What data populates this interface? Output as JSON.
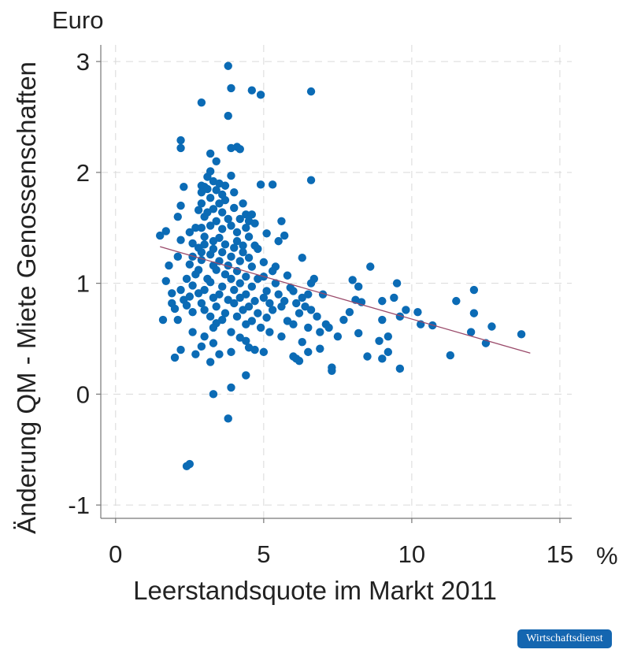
{
  "logo_text": "Wirtschaftsdienst",
  "chart_data": {
    "type": "scatter",
    "title": "",
    "xlabel": "Leerstandsquote im Markt 2011",
    "ylabel": "Änderung QM - Miete Genossenschaften",
    "x_unit": "%",
    "y_unit": "Euro",
    "xlim": [
      -0.5,
      15.4
    ],
    "ylim": [
      -1.12,
      3.15
    ],
    "x_ticks": [
      0,
      5,
      10,
      15
    ],
    "y_ticks": [
      -1,
      0,
      1,
      2,
      3
    ],
    "grid": true,
    "colors": {
      "points": "#0b6bb5",
      "fit_line": "#9a4a6a"
    },
    "fit_line": {
      "x": [
        1.5,
        14.0
      ],
      "y": [
        1.33,
        0.37
      ]
    },
    "points": [
      [
        3.8,
        2.96
      ],
      [
        3.9,
        2.76
      ],
      [
        4.6,
        2.74
      ],
      [
        4.9,
        2.7
      ],
      [
        6.6,
        2.73
      ],
      [
        2.9,
        2.63
      ],
      [
        3.8,
        2.51
      ],
      [
        4.1,
        2.23
      ],
      [
        2.2,
        2.29
      ],
      [
        4.2,
        2.21
      ],
      [
        2.2,
        2.22
      ],
      [
        3.9,
        2.22
      ],
      [
        3.2,
        2.17
      ],
      [
        3.4,
        2.1
      ],
      [
        3.1,
        1.96
      ],
      [
        3.9,
        1.97
      ],
      [
        3.2,
        2.01
      ],
      [
        6.6,
        1.93
      ],
      [
        2.9,
        1.88
      ],
      [
        3.3,
        1.92
      ],
      [
        3.5,
        1.9
      ],
      [
        2.3,
        1.87
      ],
      [
        3.0,
        1.87
      ],
      [
        3.7,
        1.88
      ],
      [
        4.9,
        1.89
      ],
      [
        5.3,
        1.89
      ],
      [
        3.1,
        1.85
      ],
      [
        3.4,
        1.84
      ],
      [
        2.9,
        1.82
      ],
      [
        3.6,
        1.8
      ],
      [
        4.0,
        1.82
      ],
      [
        3.2,
        1.77
      ],
      [
        3.7,
        1.75
      ],
      [
        2.9,
        1.72
      ],
      [
        3.5,
        1.72
      ],
      [
        4.3,
        1.72
      ],
      [
        2.2,
        1.7
      ],
      [
        3.3,
        1.67
      ],
      [
        4.0,
        1.68
      ],
      [
        2.8,
        1.66
      ],
      [
        3.1,
        1.64
      ],
      [
        3.6,
        1.64
      ],
      [
        4.4,
        1.62
      ],
      [
        4.6,
        1.62
      ],
      [
        2.1,
        1.6
      ],
      [
        3.0,
        1.6
      ],
      [
        3.8,
        1.58
      ],
      [
        4.2,
        1.58
      ],
      [
        3.4,
        1.56
      ],
      [
        4.5,
        1.56
      ],
      [
        5.6,
        1.56
      ],
      [
        4.7,
        1.54
      ],
      [
        3.2,
        1.52
      ],
      [
        3.9,
        1.52
      ],
      [
        2.7,
        1.5
      ],
      [
        2.9,
        1.5
      ],
      [
        3.6,
        1.49
      ],
      [
        4.4,
        1.5
      ],
      [
        1.7,
        1.47
      ],
      [
        2.5,
        1.46
      ],
      [
        4.1,
        1.46
      ],
      [
        5.1,
        1.45
      ],
      [
        1.5,
        1.43
      ],
      [
        3.0,
        1.42
      ],
      [
        3.5,
        1.41
      ],
      [
        4.5,
        1.42
      ],
      [
        5.7,
        1.43
      ],
      [
        2.2,
        1.39
      ],
      [
        3.3,
        1.38
      ],
      [
        4.1,
        1.38
      ],
      [
        5.5,
        1.38
      ],
      [
        2.6,
        1.36
      ],
      [
        3.0,
        1.35
      ],
      [
        3.7,
        1.35
      ],
      [
        4.3,
        1.34
      ],
      [
        4.7,
        1.34
      ],
      [
        2.8,
        1.32
      ],
      [
        3.3,
        1.31
      ],
      [
        4.0,
        1.32
      ],
      [
        4.8,
        1.31
      ],
      [
        2.9,
        1.28
      ],
      [
        3.6,
        1.28
      ],
      [
        4.3,
        1.28
      ],
      [
        3.2,
        1.26
      ],
      [
        2.1,
        1.24
      ],
      [
        2.6,
        1.24
      ],
      [
        3.9,
        1.24
      ],
      [
        4.5,
        1.23
      ],
      [
        6.3,
        1.23
      ],
      [
        2.9,
        1.21
      ],
      [
        3.5,
        1.2
      ],
      [
        4.2,
        1.2
      ],
      [
        5.0,
        1.19
      ],
      [
        1.8,
        1.16
      ],
      [
        2.5,
        1.17
      ],
      [
        3.3,
        1.16
      ],
      [
        3.8,
        1.16
      ],
      [
        4.6,
        1.15
      ],
      [
        5.4,
        1.15
      ],
      [
        8.6,
        1.15
      ],
      [
        2.8,
        1.12
      ],
      [
        3.4,
        1.12
      ],
      [
        4.1,
        1.11
      ],
      [
        5.3,
        1.11
      ],
      [
        2.7,
        1.08
      ],
      [
        3.7,
        1.08
      ],
      [
        4.4,
        1.06
      ],
      [
        5.0,
        1.06
      ],
      [
        5.8,
        1.07
      ],
      [
        2.4,
        1.04
      ],
      [
        3.1,
        1.04
      ],
      [
        3.9,
        1.04
      ],
      [
        4.8,
        1.04
      ],
      [
        6.7,
        1.04
      ],
      [
        8.0,
        1.03
      ],
      [
        1.7,
        1.02
      ],
      [
        3.2,
        1.01
      ],
      [
        4.2,
        1.0
      ],
      [
        5.4,
        1.0
      ],
      [
        6.6,
        1.0
      ],
      [
        9.5,
        1.0
      ],
      [
        2.6,
        0.98
      ],
      [
        3.6,
        0.97
      ],
      [
        4.6,
        0.97
      ],
      [
        5.9,
        0.96
      ],
      [
        8.2,
        0.97
      ],
      [
        2.2,
        0.94
      ],
      [
        3.0,
        0.94
      ],
      [
        4.0,
        0.94
      ],
      [
        5.1,
        0.93
      ],
      [
        6.0,
        0.93
      ],
      [
        12.1,
        0.94
      ],
      [
        1.9,
        0.91
      ],
      [
        2.8,
        0.91
      ],
      [
        3.5,
        0.9
      ],
      [
        4.4,
        0.9
      ],
      [
        5.5,
        0.9
      ],
      [
        6.5,
        0.9
      ],
      [
        7.0,
        0.9
      ],
      [
        2.5,
        0.88
      ],
      [
        3.3,
        0.87
      ],
      [
        4.2,
        0.87
      ],
      [
        5.0,
        0.87
      ],
      [
        6.3,
        0.87
      ],
      [
        9.4,
        0.87
      ],
      [
        2.3,
        0.85
      ],
      [
        3.8,
        0.85
      ],
      [
        4.7,
        0.84
      ],
      [
        5.7,
        0.84
      ],
      [
        8.1,
        0.85
      ],
      [
        9.0,
        0.84
      ],
      [
        11.5,
        0.84
      ],
      [
        1.9,
        0.82
      ],
      [
        2.9,
        0.82
      ],
      [
        4.0,
        0.82
      ],
      [
        5.2,
        0.82
      ],
      [
        6.1,
        0.82
      ],
      [
        8.3,
        0.83
      ],
      [
        2.4,
        0.8
      ],
      [
        3.4,
        0.79
      ],
      [
        4.5,
        0.79
      ],
      [
        5.6,
        0.79
      ],
      [
        6.4,
        0.79
      ],
      [
        2.0,
        0.77
      ],
      [
        3.0,
        0.76
      ],
      [
        4.3,
        0.76
      ],
      [
        5.3,
        0.76
      ],
      [
        6.6,
        0.76
      ],
      [
        9.8,
        0.76
      ],
      [
        2.6,
        0.74
      ],
      [
        3.7,
        0.73
      ],
      [
        4.8,
        0.73
      ],
      [
        6.2,
        0.73
      ],
      [
        7.9,
        0.74
      ],
      [
        10.2,
        0.74
      ],
      [
        12.1,
        0.73
      ],
      [
        3.2,
        0.7
      ],
      [
        4.1,
        0.7
      ],
      [
        5.1,
        0.69
      ],
      [
        6.8,
        0.7
      ],
      [
        9.6,
        0.7
      ],
      [
        2.1,
        0.67
      ],
      [
        3.6,
        0.67
      ],
      [
        4.6,
        0.66
      ],
      [
        5.8,
        0.66
      ],
      [
        7.7,
        0.67
      ],
      [
        9.0,
        0.67
      ],
      [
        1.6,
        0.67
      ],
      [
        3.4,
        0.64
      ],
      [
        4.4,
        0.63
      ],
      [
        6.0,
        0.63
      ],
      [
        7.1,
        0.63
      ],
      [
        10.3,
        0.63
      ],
      [
        10.7,
        0.62
      ],
      [
        12.7,
        0.61
      ],
      [
        3.3,
        0.6
      ],
      [
        4.9,
        0.6
      ],
      [
        6.5,
        0.6
      ],
      [
        7.2,
        0.6
      ],
      [
        2.6,
        0.56
      ],
      [
        3.9,
        0.56
      ],
      [
        5.2,
        0.56
      ],
      [
        6.9,
        0.56
      ],
      [
        8.2,
        0.55
      ],
      [
        12.0,
        0.56
      ],
      [
        3.0,
        0.52
      ],
      [
        4.2,
        0.51
      ],
      [
        5.6,
        0.52
      ],
      [
        7.5,
        0.52
      ],
      [
        9.2,
        0.52
      ],
      [
        13.7,
        0.54
      ],
      [
        4.4,
        0.48
      ],
      [
        3.3,
        0.46
      ],
      [
        6.3,
        0.47
      ],
      [
        8.9,
        0.48
      ],
      [
        12.5,
        0.46
      ],
      [
        2.9,
        0.43
      ],
      [
        4.5,
        0.42
      ],
      [
        6.9,
        0.41
      ],
      [
        2.2,
        0.4
      ],
      [
        3.9,
        0.38
      ],
      [
        4.7,
        0.4
      ],
      [
        5.0,
        0.38
      ],
      [
        6.5,
        0.38
      ],
      [
        9.2,
        0.38
      ],
      [
        2.7,
        0.36
      ],
      [
        3.5,
        0.36
      ],
      [
        6.0,
        0.34
      ],
      [
        8.5,
        0.34
      ],
      [
        11.3,
        0.35
      ],
      [
        2.0,
        0.33
      ],
      [
        6.1,
        0.32
      ],
      [
        9.0,
        0.32
      ],
      [
        3.2,
        0.29
      ],
      [
        6.2,
        0.3
      ],
      [
        7.3,
        0.24
      ],
      [
        9.6,
        0.23
      ],
      [
        7.3,
        0.21
      ],
      [
        4.4,
        0.17
      ],
      [
        3.9,
        0.06
      ],
      [
        3.3,
        0.0
      ],
      [
        3.8,
        -0.22
      ],
      [
        2.5,
        -0.63
      ],
      [
        2.4,
        -0.65
      ]
    ]
  }
}
